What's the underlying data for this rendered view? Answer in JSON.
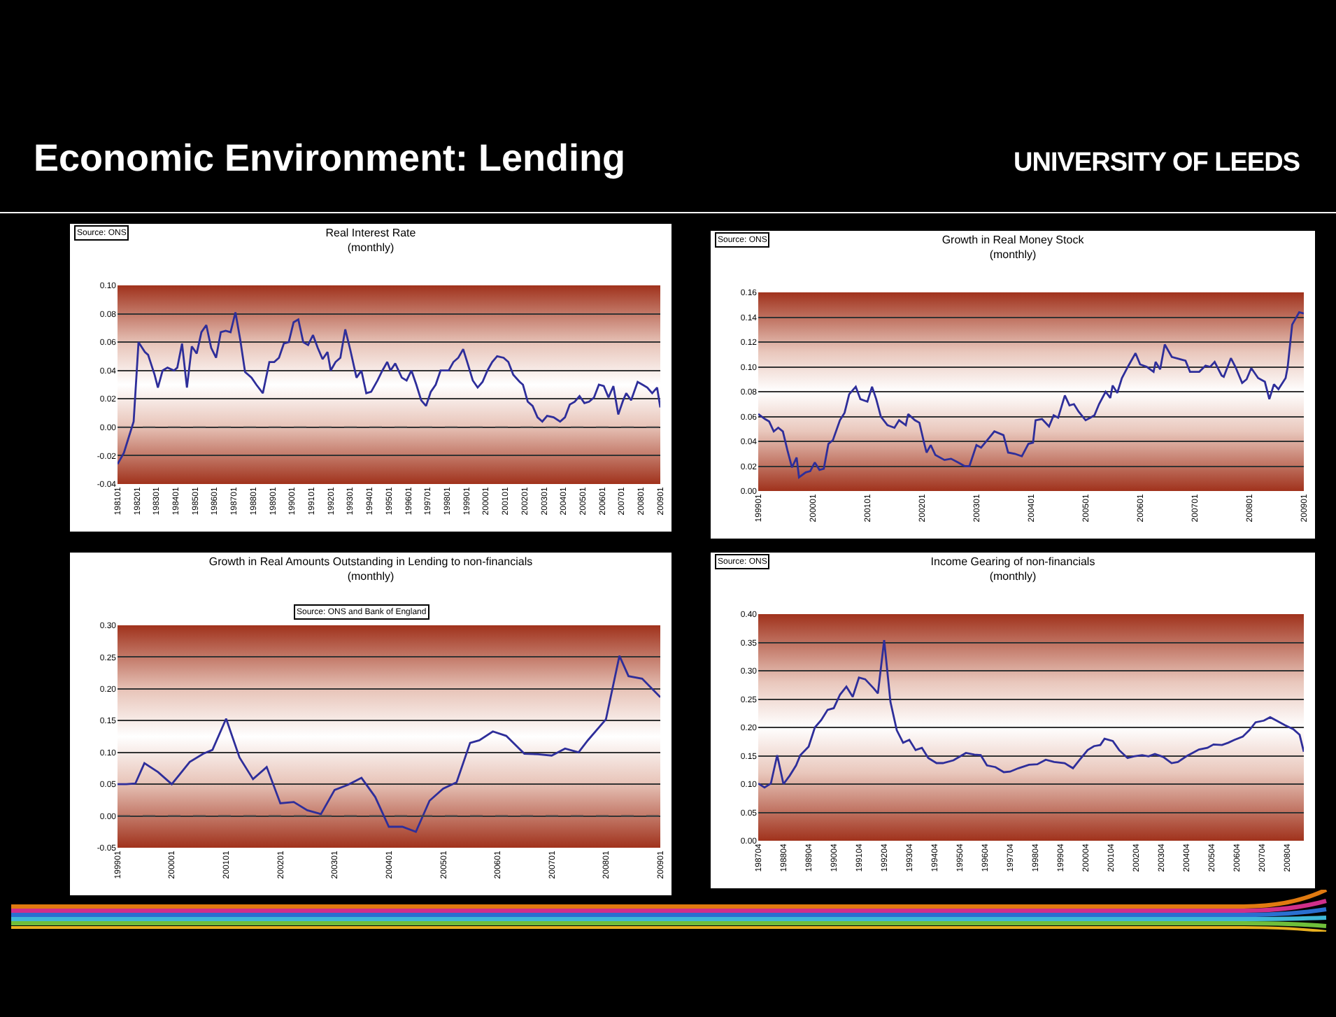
{
  "chart_data": [
    {
      "type": "line",
      "title": "Real Interest Rate",
      "subtitle": "(monthly)",
      "annotations": [
        "Economic Environment: Lending",
        "UNIVERSITY OF LEEDS",
        "Source: ONS"
      ],
      "x": [
        "1981-01",
        "1981-05",
        "1981-11",
        "1982-02",
        "1982-06",
        "1982-08",
        "1982-12",
        "1983-02",
        "1983-05",
        "1983-08",
        "1983-12",
        "1984-02",
        "1984-05",
        "1984-08",
        "1984-11",
        "1985-02",
        "1985-05",
        "1985-08",
        "1985-11",
        "1986-02",
        "1986-05",
        "1986-08",
        "1986-11",
        "1987-02",
        "1987-05",
        "1987-08",
        "1987-12",
        "1988-03",
        "1988-07",
        "1988-11",
        "1989-02",
        "1989-05",
        "1989-08",
        "1989-11",
        "1990-02",
        "1990-05",
        "1990-08",
        "1990-11",
        "1991-02",
        "1991-05",
        "1991-08",
        "1991-11",
        "1992-01",
        "1992-04",
        "1992-07",
        "1992-10",
        "1993-01",
        "1993-05",
        "1993-08",
        "1993-11",
        "1994-02",
        "1994-06",
        "1994-09",
        "1994-12",
        "1995-02",
        "1995-05",
        "1995-09",
        "1995-12",
        "1996-03",
        "1996-06",
        "1996-09",
        "1996-12",
        "1997-03",
        "1997-06",
        "1997-09",
        "1998-02",
        "1998-05",
        "1998-08",
        "1998-11",
        "1999-02",
        "1999-05",
        "1999-08",
        "1999-11",
        "2000-02",
        "2000-05",
        "2000-08",
        "2000-12",
        "2001-03",
        "2001-06",
        "2001-10",
        "2001-12",
        "2002-03",
        "2002-06",
        "2002-09",
        "2002-12",
        "2003-03",
        "2003-07",
        "2003-11",
        "2004-02",
        "2004-05",
        "2004-08",
        "2004-11",
        "2005-02",
        "2005-05",
        "2005-08",
        "2005-11",
        "2006-02",
        "2006-05",
        "2006-08",
        "2006-11",
        "2007-02",
        "2007-04",
        "2007-07",
        "2007-11",
        "2008-02",
        "2008-05",
        "2008-08",
        "2008-11",
        "2009-01"
      ],
      "series": [
        {
          "color": "#2e2e9a",
          "values": [
            -0.026,
            -0.018,
            0.004,
            0.06,
            0.053,
            0.051,
            0.037,
            0.028,
            0.04,
            0.042,
            0.04,
            0.042,
            0.059,
            0.028,
            0.057,
            0.052,
            0.067,
            0.072,
            0.056,
            0.049,
            0.067,
            0.068,
            0.067,
            0.081,
            0.062,
            0.039,
            0.035,
            0.03,
            0.024,
            0.046,
            0.046,
            0.049,
            0.059,
            0.06,
            0.074,
            0.076,
            0.06,
            0.058,
            0.065,
            0.056,
            0.048,
            0.053,
            0.04,
            0.046,
            0.049,
            0.069,
            0.055,
            0.035,
            0.04,
            0.024,
            0.025,
            0.033,
            0.04,
            0.046,
            0.04,
            0.045,
            0.035,
            0.033,
            0.04,
            0.03,
            0.019,
            0.015,
            0.025,
            0.03,
            0.04,
            0.04,
            0.046,
            0.049,
            0.055,
            0.044,
            0.033,
            0.028,
            0.032,
            0.04,
            0.046,
            0.05,
            0.049,
            0.046,
            0.037,
            0.032,
            0.03,
            0.018,
            0.015,
            0.007,
            0.004,
            0.008,
            0.007,
            0.004,
            0.007,
            0.016,
            0.018,
            0.022,
            0.017,
            0.018,
            0.021,
            0.03,
            0.029,
            0.021,
            0.029,
            0.009,
            0.019,
            0.024,
            0.019,
            0.032,
            0.03,
            0.028,
            0.024,
            0.028,
            0.014
          ]
        }
      ],
      "xlim": [
        "1981-01",
        "2009-01"
      ],
      "xticks": [
        {
          "value": "1981-01",
          "label": "198101"
        },
        {
          "value": "1982-01",
          "label": "198201"
        },
        {
          "value": "1983-01",
          "label": "198301"
        },
        {
          "value": "1984-01",
          "label": "198401"
        },
        {
          "value": "1985-01",
          "label": "198501"
        },
        {
          "value": "1986-01",
          "label": "198601"
        },
        {
          "value": "1987-01",
          "label": "198701"
        },
        {
          "value": "1988-01",
          "label": "198801"
        },
        {
          "value": "1989-01",
          "label": "198901"
        },
        {
          "value": "1990-01",
          "label": "199001"
        },
        {
          "value": "1991-01",
          "label": "199101"
        },
        {
          "value": "1992-01",
          "label": "199201"
        },
        {
          "value": "1993-01",
          "label": "199301"
        },
        {
          "value": "1994-01",
          "label": "199401"
        },
        {
          "value": "1995-01",
          "label": "199501"
        },
        {
          "value": "1996-01",
          "label": "199601"
        },
        {
          "value": "1997-01",
          "label": "199701"
        },
        {
          "value": "1998-01",
          "label": "199801"
        },
        {
          "value": "1999-01",
          "label": "199901"
        },
        {
          "value": "2000-01",
          "label": "200001"
        },
        {
          "value": "2001-01",
          "label": "200101"
        },
        {
          "value": "2002-01",
          "label": "200201"
        },
        {
          "value": "2003-01",
          "label": "200301"
        },
        {
          "value": "2004-01",
          "label": "200401"
        },
        {
          "value": "2005-01",
          "label": "200501"
        },
        {
          "value": "2006-01",
          "label": "200601"
        },
        {
          "value": "2007-01",
          "label": "200701"
        },
        {
          "value": "2008-01",
          "label": "200801"
        },
        {
          "value": "2009-01",
          "label": "200901"
        }
      ],
      "ylim": [
        -0.04,
        0.1
      ],
      "yticks": [
        {
          "value": -0.04,
          "label": "-0.04"
        },
        {
          "value": -0.02,
          "label": "-0.02"
        },
        {
          "value": 0,
          "label": "0.00"
        },
        {
          "value": 0.02,
          "label": "0.02"
        },
        {
          "value": 0.04,
          "label": "0.04"
        },
        {
          "value": 0.06,
          "label": "0.06"
        },
        {
          "value": 0.08,
          "label": "0.08"
        },
        {
          "value": 0.1,
          "label": "0.10"
        }
      ],
      "ref_lines": [
        {
          "axis": "y",
          "value": 0,
          "color": "#444444",
          "line_style": "dashed"
        }
      ],
      "grid": "y",
      "marker": "none",
      "line_style": "solid"
    },
    {
      "type": "line",
      "title": "Growth in Real Money Stock",
      "subtitle": "(monthly)",
      "annotations": [
        "Source: ONS"
      ],
      "x": [
        "1999-01-01",
        "1999-02-15",
        "1999-03-15",
        "1999-04-15",
        "1999-05-15",
        "1999-06-15",
        "1999-07-15",
        "1999-08-15",
        "1999-09-15",
        "1999-10-01",
        "1999-11-15",
        "1999-12-15",
        "2000-01-15",
        "2000-02-15",
        "2000-03-15",
        "2000-04-15",
        "2000-05-15",
        "2000-07-01",
        "2000-08-01",
        "2000-09-01",
        "2000-10-15",
        "2000-11-15",
        "2001-01-01",
        "2001-02-01",
        "2001-03-01",
        "2001-04-01",
        "2001-05-15",
        "2001-07-01",
        "2001-08-01",
        "2001-09-15",
        "2001-10-01",
        "2001-11-15",
        "2001-12-15",
        "2002-01-15",
        "2002-02-01",
        "2002-03-01",
        "2002-04-01",
        "2002-06-01",
        "2002-07-15",
        "2002-09-01",
        "2002-10-15",
        "2002-11-15",
        "2003-01-01",
        "2003-02-01",
        "2003-03-15",
        "2003-05-01",
        "2003-07-01",
        "2003-08-01",
        "2003-09-15",
        "2003-11-01",
        "2003-12-15",
        "2004-01-15",
        "2004-02-01",
        "2004-03-15",
        "2004-05-01",
        "2004-06-01",
        "2004-07-01",
        "2004-08-15",
        "2004-09-15",
        "2004-10-15",
        "2004-11-15",
        "2005-01-01",
        "2005-02-01",
        "2005-03-01",
        "2005-04-01",
        "2005-05-15",
        "2005-06-15",
        "2005-07-01",
        "2005-08-01",
        "2005-09-01",
        "2005-10-15",
        "2005-12-01",
        "2006-01-01",
        "2006-02-15",
        "2006-04-01",
        "2006-04-15",
        "2006-05-15",
        "2006-06-15",
        "2006-08-01",
        "2006-10-01",
        "2006-11-01",
        "2006-12-01",
        "2007-02-01",
        "2007-03-15",
        "2007-04-15",
        "2007-05-15",
        "2007-07-01",
        "2007-07-15",
        "2007-09-01",
        "2007-10-01",
        "2007-11-15",
        "2007-12-15",
        "2008-01-15",
        "2008-03-01",
        "2008-04-15",
        "2008-05-15",
        "2008-06-15",
        "2008-07-15",
        "2008-09-01",
        "2008-09-15",
        "2008-10-15",
        "2008-12-01",
        "2009-01-01"
      ],
      "series": [
        {
          "color": "#2e2e9a",
          "values": [
            0.062,
            0.058,
            0.056,
            0.048,
            0.051,
            0.048,
            0.033,
            0.019,
            0.027,
            0.011,
            0.015,
            0.016,
            0.023,
            0.017,
            0.018,
            0.038,
            0.041,
            0.057,
            0.063,
            0.078,
            0.084,
            0.074,
            0.072,
            0.084,
            0.074,
            0.06,
            0.053,
            0.051,
            0.057,
            0.053,
            0.062,
            0.057,
            0.055,
            0.039,
            0.031,
            0.037,
            0.029,
            0.025,
            0.026,
            0.023,
            0.02,
            0.02,
            0.037,
            0.035,
            0.041,
            0.048,
            0.045,
            0.031,
            0.03,
            0.028,
            0.038,
            0.039,
            0.057,
            0.058,
            0.052,
            0.061,
            0.059,
            0.077,
            0.069,
            0.07,
            0.064,
            0.057,
            0.059,
            0.061,
            0.07,
            0.08,
            0.075,
            0.085,
            0.079,
            0.091,
            0.101,
            0.111,
            0.102,
            0.1,
            0.096,
            0.104,
            0.098,
            0.118,
            0.108,
            0.106,
            0.105,
            0.096,
            0.096,
            0.101,
            0.1,
            0.104,
            0.093,
            0.092,
            0.107,
            0.1,
            0.087,
            0.09,
            0.099,
            0.091,
            0.088,
            0.074,
            0.086,
            0.082,
            0.091,
            0.1,
            0.134,
            0.144,
            0.143
          ]
        }
      ],
      "xlim": [
        "1999-01",
        "2009-01"
      ],
      "xticks": [
        {
          "value": "1999-01",
          "label": "199901"
        },
        {
          "value": "2000-01",
          "label": "200001"
        },
        {
          "value": "2001-01",
          "label": "200101"
        },
        {
          "value": "2002-01",
          "label": "200201"
        },
        {
          "value": "2003-01",
          "label": "200301"
        },
        {
          "value": "2004-01",
          "label": "200401"
        },
        {
          "value": "2005-01",
          "label": "200501"
        },
        {
          "value": "2006-01",
          "label": "200601"
        },
        {
          "value": "2007-01",
          "label": "200701"
        },
        {
          "value": "2008-01",
          "label": "200801"
        },
        {
          "value": "2009-01",
          "label": "200901"
        }
      ],
      "ylim": [
        0,
        0.16
      ],
      "yticks": [
        {
          "value": 0,
          "label": "0.00"
        },
        {
          "value": 0.02,
          "label": "0.02"
        },
        {
          "value": 0.04,
          "label": "0.04"
        },
        {
          "value": 0.06,
          "label": "0.06"
        },
        {
          "value": 0.08,
          "label": "0.08"
        },
        {
          "value": 0.1,
          "label": "0.10"
        },
        {
          "value": 0.12,
          "label": "0.12"
        },
        {
          "value": 0.14,
          "label": "0.14"
        },
        {
          "value": 0.16,
          "label": "0.16"
        }
      ],
      "grid": "y",
      "marker": "none",
      "line_style": "solid"
    },
    {
      "type": "line",
      "title": "Growth in Real Amounts Outstanding in Lending to non-financials",
      "subtitle": "(monthly)",
      "annotations": [
        "Source: ONS and Bank of England"
      ],
      "x": [
        "1999-01",
        "1999-03",
        "1999-05",
        "1999-07",
        "1999-10",
        "2000-01",
        "2000-05",
        "2000-08",
        "2000-10",
        "2001-01",
        "2001-04",
        "2001-07",
        "2001-10",
        "2002-01",
        "2002-04",
        "2002-07",
        "2002-10",
        "2003-01",
        "2003-04",
        "2003-07",
        "2003-10",
        "2004-01",
        "2004-04",
        "2004-07",
        "2004-10",
        "2005-01",
        "2005-04",
        "2005-07",
        "2005-09",
        "2005-12",
        "2006-03",
        "2006-07",
        "2006-10",
        "2007-01",
        "2007-04",
        "2007-07",
        "2007-09",
        "2008-01",
        "2008-04",
        "2008-06",
        "2008-09",
        "2009-01"
      ],
      "series": [
        {
          "color": "#2e2e9a",
          "values": [
            0.05,
            0.05,
            0.051,
            0.083,
            0.069,
            0.05,
            0.085,
            0.098,
            0.104,
            0.153,
            0.092,
            0.058,
            0.077,
            0.02,
            0.022,
            0.009,
            0.003,
            0.041,
            0.049,
            0.06,
            0.03,
            -0.017,
            -0.017,
            -0.025,
            0.024,
            0.043,
            0.053,
            0.115,
            0.119,
            0.133,
            0.126,
            0.098,
            0.097,
            0.095,
            0.106,
            0.1,
            0.119,
            0.152,
            0.252,
            0.22,
            0.216,
            0.187
          ]
        }
      ],
      "xlim": [
        "1999-01",
        "2009-01"
      ],
      "xticks": [
        {
          "value": "1999-01",
          "label": "199901"
        },
        {
          "value": "2000-01",
          "label": "200001"
        },
        {
          "value": "2001-01",
          "label": "200101"
        },
        {
          "value": "2002-01",
          "label": "200201"
        },
        {
          "value": "2003-01",
          "label": "200301"
        },
        {
          "value": "2004-01",
          "label": "200401"
        },
        {
          "value": "2005-01",
          "label": "200501"
        },
        {
          "value": "2006-01",
          "label": "200601"
        },
        {
          "value": "2007-01",
          "label": "200701"
        },
        {
          "value": "2008-01",
          "label": "200801"
        },
        {
          "value": "2009-01",
          "label": "200901"
        }
      ],
      "ylim": [
        -0.05,
        0.3
      ],
      "yticks": [
        {
          "value": -0.05,
          "label": "-0.05"
        },
        {
          "value": 0,
          "label": "0.00"
        },
        {
          "value": 0.05,
          "label": "0.05"
        },
        {
          "value": 0.1,
          "label": "0.10"
        },
        {
          "value": 0.15,
          "label": "0.15"
        },
        {
          "value": 0.2,
          "label": "0.20"
        },
        {
          "value": 0.25,
          "label": "0.25"
        },
        {
          "value": 0.3,
          "label": "0.30"
        }
      ],
      "ref_lines": [
        {
          "axis": "y",
          "value": 0,
          "color": "#444444",
          "line_style": "dashed"
        }
      ],
      "grid": "y",
      "marker": "none",
      "line_style": "solid"
    },
    {
      "type": "line",
      "title": "Income Gearing of non-financials",
      "subtitle": "(monthly)",
      "annotations": [
        "Source: ONS"
      ],
      "x": [
        "1987-04",
        "1987-07",
        "1987-10",
        "1988-01",
        "1988-04",
        "1988-07",
        "1988-10",
        "1988-12",
        "1989-04",
        "1989-07",
        "1989-10",
        "1990-01",
        "1990-04",
        "1990-07",
        "1990-10",
        "1991-01",
        "1991-04",
        "1991-07",
        "1991-11",
        "1992-01",
        "1992-04",
        "1992-07",
        "1992-10",
        "1993-01",
        "1993-04",
        "1993-07",
        "1993-10",
        "1994-01",
        "1994-05",
        "1994-08",
        "1995-01",
        "1995-07",
        "1995-11",
        "1996-02",
        "1996-05",
        "1996-09",
        "1997-01",
        "1997-04",
        "1997-08",
        "1998-01",
        "1998-05",
        "1998-09",
        "1999-01",
        "1999-06",
        "1999-10",
        "2000-01",
        "2000-05",
        "2000-08",
        "2000-11",
        "2001-01",
        "2001-05",
        "2001-08",
        "2001-12",
        "2002-03",
        "2002-07",
        "2002-10",
        "2003-01",
        "2003-05",
        "2003-09",
        "2003-12",
        "2004-04",
        "2004-07",
        "2004-10",
        "2005-02",
        "2005-05",
        "2005-09",
        "2005-12",
        "2006-03",
        "2006-07",
        "2006-10",
        "2007-01",
        "2007-05",
        "2007-08",
        "2007-11",
        "2008-03",
        "2008-07",
        "2008-10",
        "2008-12"
      ],
      "series": [
        {
          "color": "#2e2e9a",
          "values": [
            0.101,
            0.094,
            0.101,
            0.151,
            0.1,
            0.115,
            0.133,
            0.151,
            0.166,
            0.2,
            0.213,
            0.231,
            0.234,
            0.258,
            0.272,
            0.254,
            0.288,
            0.285,
            0.269,
            0.26,
            0.354,
            0.245,
            0.195,
            0.173,
            0.178,
            0.16,
            0.164,
            0.146,
            0.137,
            0.137,
            0.142,
            0.155,
            0.152,
            0.151,
            0.133,
            0.13,
            0.121,
            0.122,
            0.128,
            0.134,
            0.135,
            0.143,
            0.139,
            0.137,
            0.128,
            0.142,
            0.16,
            0.167,
            0.169,
            0.18,
            0.176,
            0.16,
            0.146,
            0.149,
            0.151,
            0.149,
            0.153,
            0.148,
            0.137,
            0.139,
            0.149,
            0.155,
            0.161,
            0.164,
            0.17,
            0.169,
            0.173,
            0.178,
            0.184,
            0.195,
            0.209,
            0.212,
            0.218,
            0.212,
            0.204,
            0.197,
            0.187,
            0.157
          ]
        }
      ],
      "xlim": [
        "1987-04",
        "2008-12"
      ],
      "xticks": [
        {
          "value": "1987-04",
          "label": "198704"
        },
        {
          "value": "1988-04",
          "label": "198804"
        },
        {
          "value": "1989-04",
          "label": "198904"
        },
        {
          "value": "1990-04",
          "label": "199004"
        },
        {
          "value": "1991-04",
          "label": "199104"
        },
        {
          "value": "1992-04",
          "label": "199204"
        },
        {
          "value": "1993-04",
          "label": "199304"
        },
        {
          "value": "1994-04",
          "label": "199404"
        },
        {
          "value": "1995-04",
          "label": "199504"
        },
        {
          "value": "1996-04",
          "label": "199604"
        },
        {
          "value": "1997-04",
          "label": "199704"
        },
        {
          "value": "1998-04",
          "label": "199804"
        },
        {
          "value": "1999-04",
          "label": "199904"
        },
        {
          "value": "2000-04",
          "label": "200004"
        },
        {
          "value": "2001-04",
          "label": "200104"
        },
        {
          "value": "2002-04",
          "label": "200204"
        },
        {
          "value": "2003-04",
          "label": "200304"
        },
        {
          "value": "2004-04",
          "label": "200404"
        },
        {
          "value": "2005-04",
          "label": "200504"
        },
        {
          "value": "2006-04",
          "label": "200604"
        },
        {
          "value": "2007-04",
          "label": "200704"
        },
        {
          "value": "2008-04",
          "label": "200804"
        }
      ],
      "ylim": [
        0,
        0.4
      ],
      "yticks": [
        {
          "value": 0,
          "label": "0.00"
        },
        {
          "value": 0.05,
          "label": "0.05"
        },
        {
          "value": 0.1,
          "label": "0.10"
        },
        {
          "value": 0.15,
          "label": "0.15"
        },
        {
          "value": 0.2,
          "label": "0.20"
        },
        {
          "value": 0.25,
          "label": "0.25"
        },
        {
          "value": 0.3,
          "label": "0.30"
        },
        {
          "value": 0.35,
          "label": "0.35"
        },
        {
          "value": 0.4,
          "label": "0.40"
        }
      ],
      "grid": "y",
      "marker": "none",
      "line_style": "solid"
    }
  ]
}
